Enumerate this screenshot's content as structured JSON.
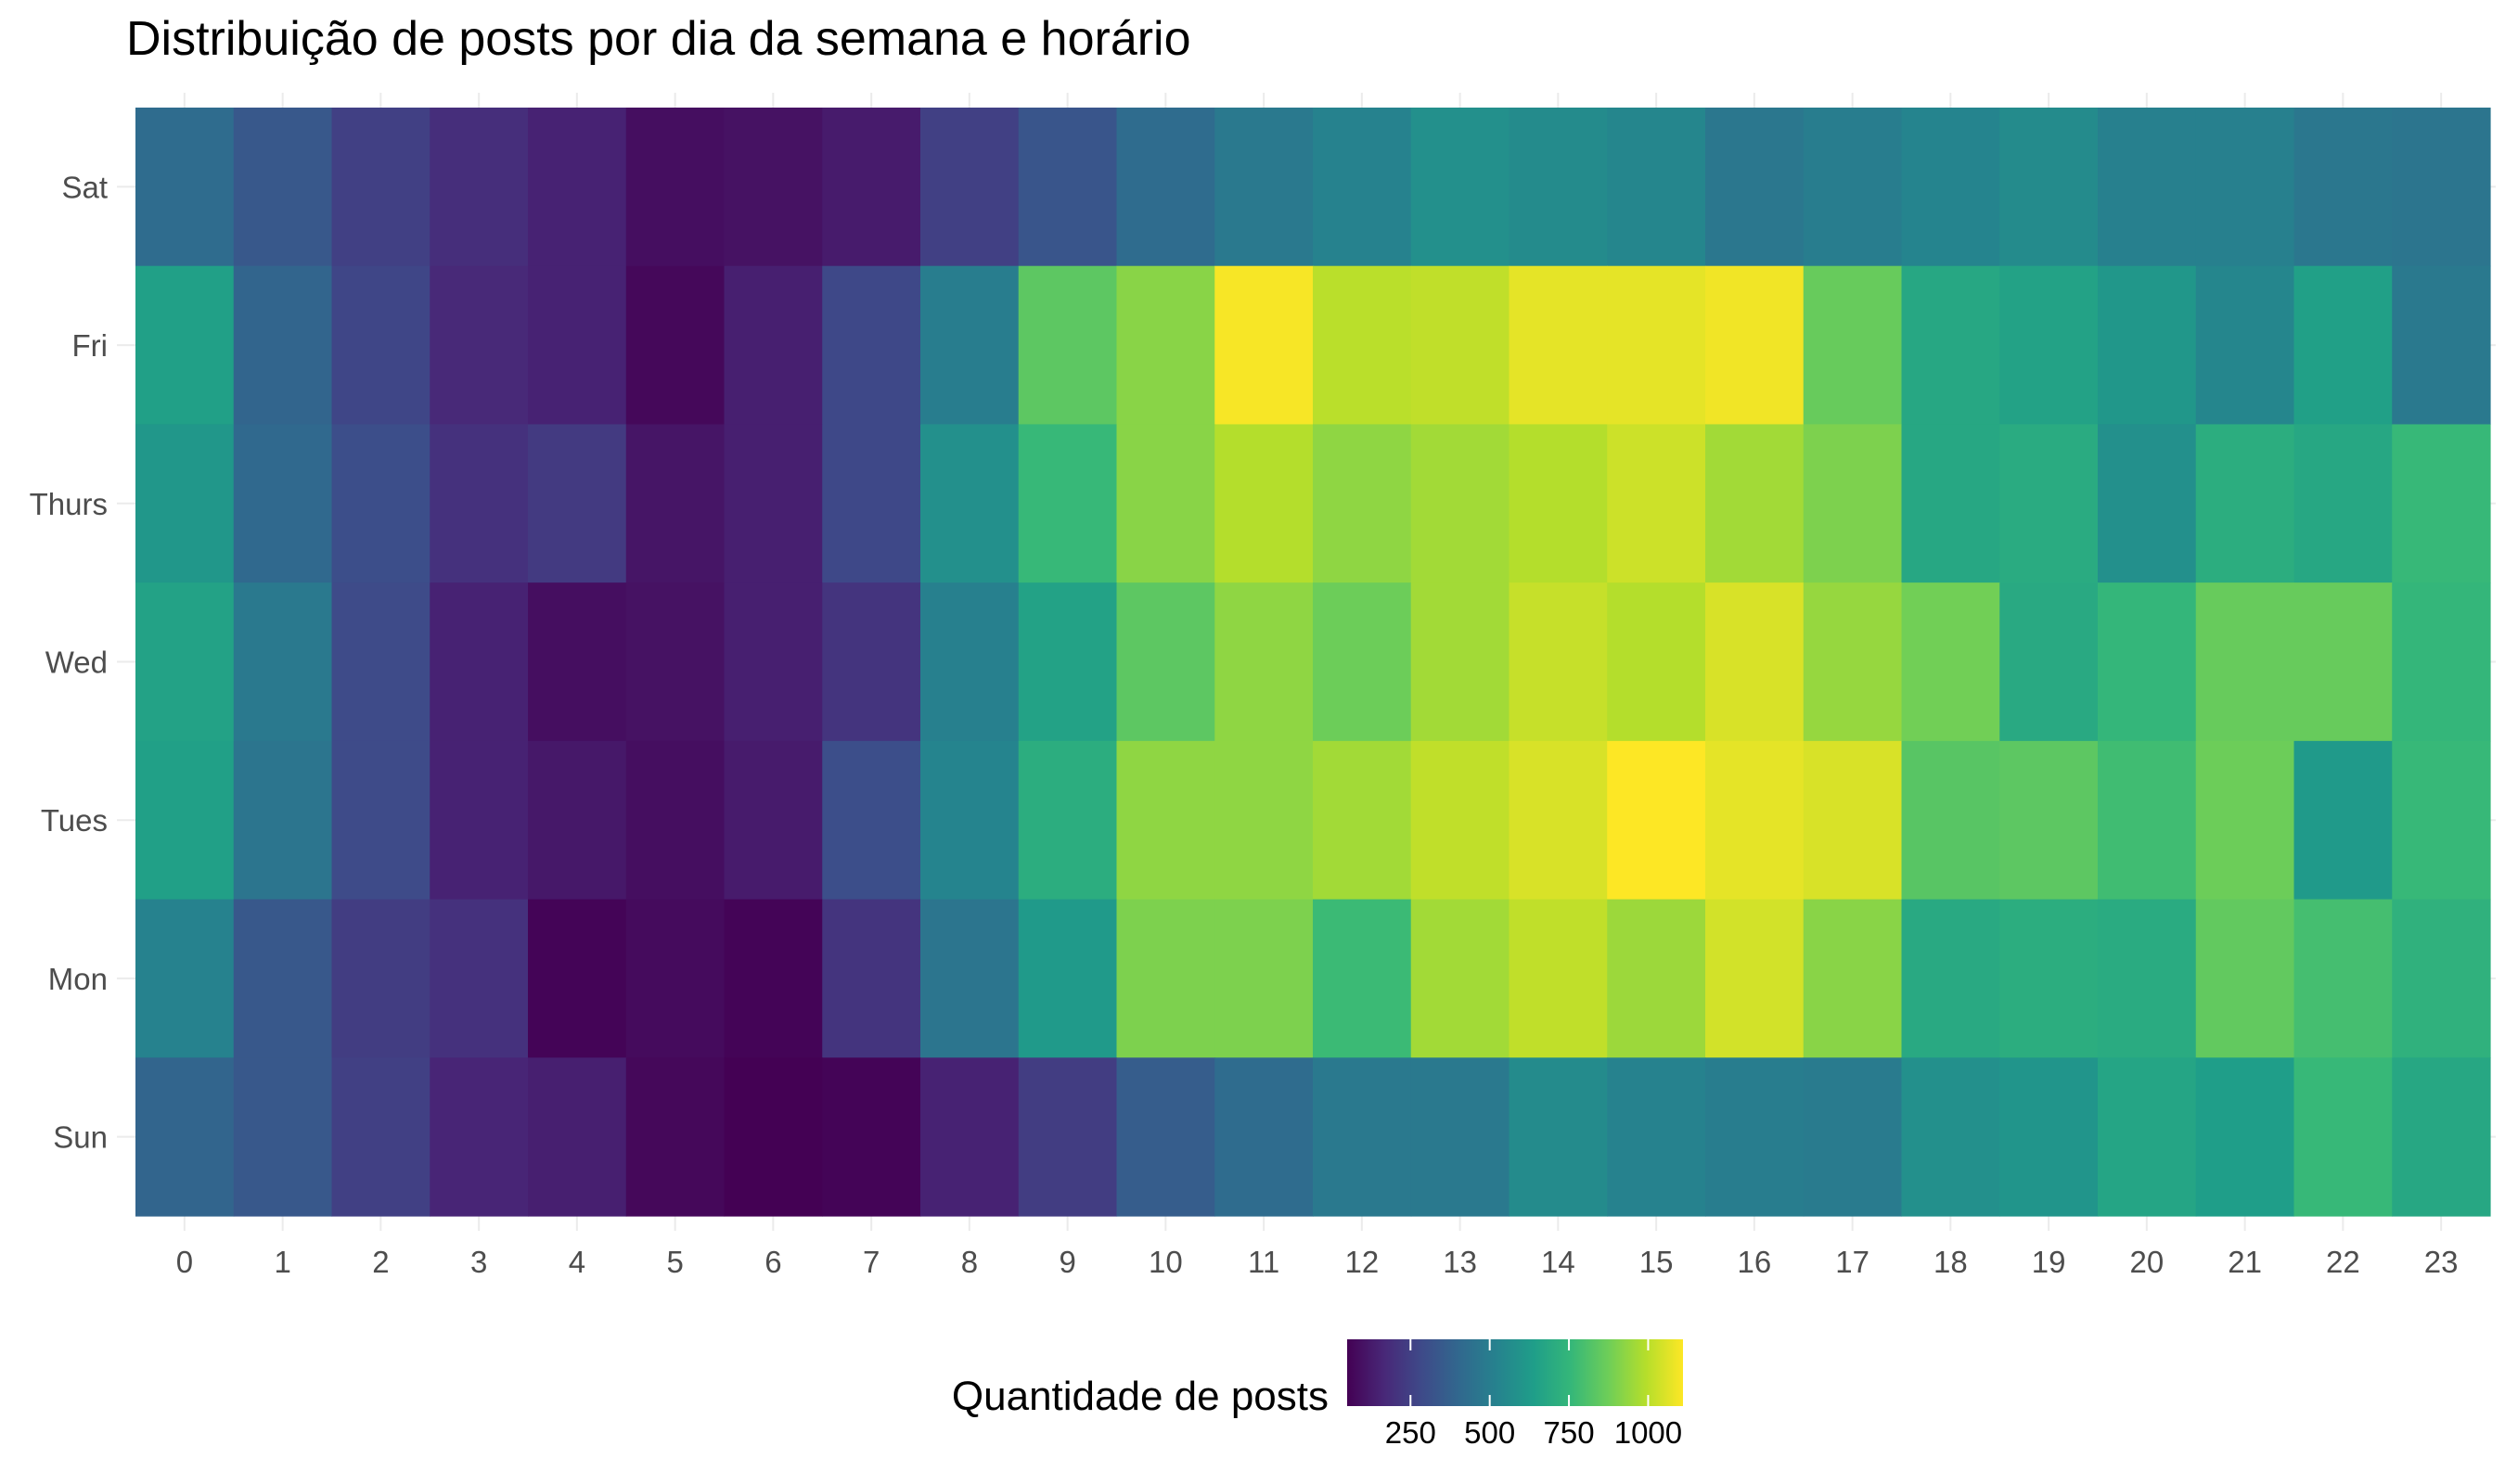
{
  "chart_data": {
    "type": "heatmap",
    "title": "Distribuição de posts por dia da semana e horário",
    "xlabel": "",
    "ylabel": "",
    "x": [
      "0",
      "1",
      "2",
      "3",
      "4",
      "5",
      "6",
      "7",
      "8",
      "9",
      "10",
      "11",
      "12",
      "13",
      "14",
      "15",
      "16",
      "17",
      "18",
      "19",
      "20",
      "21",
      "22",
      "23"
    ],
    "y": [
      "Sat",
      "Fri",
      "Thurs",
      "Wed",
      "Tues",
      "Mon",
      "Sun"
    ],
    "values": [
      [
        420,
        340,
        250,
        190,
        150,
        90,
        100,
        130,
        250,
        330,
        420,
        480,
        520,
        580,
        560,
        540,
        470,
        500,
        530,
        560,
        510,
        510,
        470,
        460
      ],
      [
        650,
        390,
        270,
        170,
        150,
        70,
        140,
        280,
        500,
        840,
        920,
        1100,
        1000,
        1010,
        1070,
        1070,
        1090,
        860,
        680,
        660,
        610,
        540,
        650,
        480
      ],
      [
        610,
        410,
        300,
        200,
        230,
        110,
        140,
        280,
        580,
        760,
        920,
        990,
        930,
        960,
        990,
        1030,
        960,
        900,
        680,
        700,
        580,
        710,
        680,
        760
      ],
      [
        660,
        480,
        290,
        150,
        90,
        100,
        140,
        210,
        510,
        660,
        840,
        930,
        870,
        960,
        1020,
        990,
        1050,
        940,
        880,
        690,
        750,
        860,
        860,
        750
      ],
      [
        650,
        460,
        290,
        150,
        120,
        90,
        130,
        300,
        530,
        710,
        930,
        930,
        960,
        1010,
        1050,
        1110,
        1070,
        1050,
        830,
        840,
        780,
        870,
        620,
        760
      ],
      [
        520,
        340,
        240,
        200,
        60,
        80,
        60,
        210,
        460,
        620,
        900,
        900,
        770,
        960,
        1010,
        950,
        1040,
        920,
        690,
        710,
        700,
        850,
        790,
        730
      ],
      [
        390,
        340,
        250,
        160,
        140,
        70,
        50,
        60,
        150,
        240,
        360,
        420,
        480,
        480,
        560,
        520,
        500,
        490,
        580,
        600,
        670,
        640,
        760,
        680
      ]
    ],
    "colorbar": {
      "title": "Quantidade de posts",
      "min": 50,
      "max": 1110,
      "ticks": [
        250,
        500,
        750,
        1000
      ],
      "tick_labels": [
        "250",
        "500",
        "750",
        "1000"
      ],
      "colormap": [
        "#440154",
        "#482878",
        "#3e4a89",
        "#31688e",
        "#26828e",
        "#1f9e89",
        "#35b779",
        "#6ece58",
        "#b5de2b",
        "#fde725"
      ]
    },
    "legend_position": "bottom",
    "grid": true
  }
}
